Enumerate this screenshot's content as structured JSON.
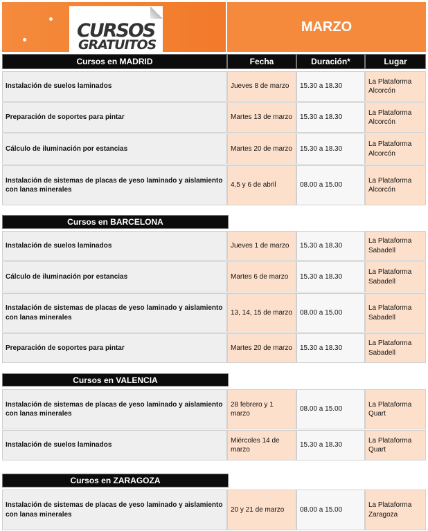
{
  "logo": {
    "line1": "CURSOS",
    "line2": "GRATUITOS"
  },
  "month": "MARZO",
  "columns": {
    "fecha": "Fecha",
    "duracion": "Duración*",
    "lugar": "Lugar"
  },
  "sections": [
    {
      "title": "Cursos en MADRID",
      "rows": [
        {
          "curso": "Instalación de suelos laminados",
          "fecha": "Jueves  8 de marzo",
          "duracion": "15.30 a 18.30",
          "lugar": "La Plataforma Alcorcón"
        },
        {
          "curso": "Preparación de soportes para pintar",
          "fecha": "Martes 13 de marzo",
          "duracion": "15.30 a 18.30",
          "lugar": "La Plataforma Alcorcón"
        },
        {
          "curso": "Cálculo de iluminación por estancias",
          "fecha": "Martes 20 de marzo",
          "duracion": "15.30 a 18.30",
          "lugar": "La Plataforma Alcorcón"
        },
        {
          "curso": "Instalación de sistemas de placas de yeso laminado y aislamiento con lanas minerales",
          "fecha": "4,5 y 6 de abril",
          "duracion": "08.00 a 15.00",
          "lugar": "La Plataforma Alcorcón"
        }
      ]
    },
    {
      "title": "Cursos en BARCELONA",
      "rows": [
        {
          "curso": "Instalación de suelos laminados",
          "fecha": "Jueves  1 de marzo",
          "duracion": "15.30 a 18.30",
          "lugar": "La Plataforma Sabadell"
        },
        {
          "curso": "Cálculo de iluminación por estancias",
          "fecha": "Martes 6 de marzo",
          "duracion": "15.30 a 18.30",
          "lugar": "La Plataforma Sabadell"
        },
        {
          "curso": "Instalación de sistemas de placas de yeso laminado y aislamiento con lanas minerales",
          "fecha": "13, 14, 15 de marzo",
          "duracion": "08.00 a 15.00",
          "lugar": "La Plataforma Sabadell"
        },
        {
          "curso": "Preparación de soportes para pintar",
          "fecha": "Martes 20 de marzo",
          "duracion": "15.30 a 18.30",
          "lugar": "La Plataforma Sabadell"
        }
      ]
    },
    {
      "title": "Cursos en VALENCIA",
      "rows": [
        {
          "curso": "Instalación de sistemas de placas de yeso laminado y aislamiento con lanas minerales",
          "fecha": "28 febrero y 1 marzo",
          "duracion": "08.00 a 15.00",
          "lugar": "La Plataforma Quart"
        },
        {
          "curso": "Instalación de suelos laminados",
          "fecha": "Miércoles 14 de marzo",
          "duracion": "15.30 a 18.30",
          "lugar": "La Plataforma Quart"
        }
      ]
    },
    {
      "title": "Cursos en ZARAGOZA",
      "rows": [
        {
          "curso": "Instalación de sistemas de placas de yeso laminado y aislamiento con lanas minerales",
          "fecha": "20 y 21 de marzo",
          "duracion": "08.00 a 15.00",
          "lugar": "La Plataforma Zaragoza"
        }
      ]
    }
  ]
}
